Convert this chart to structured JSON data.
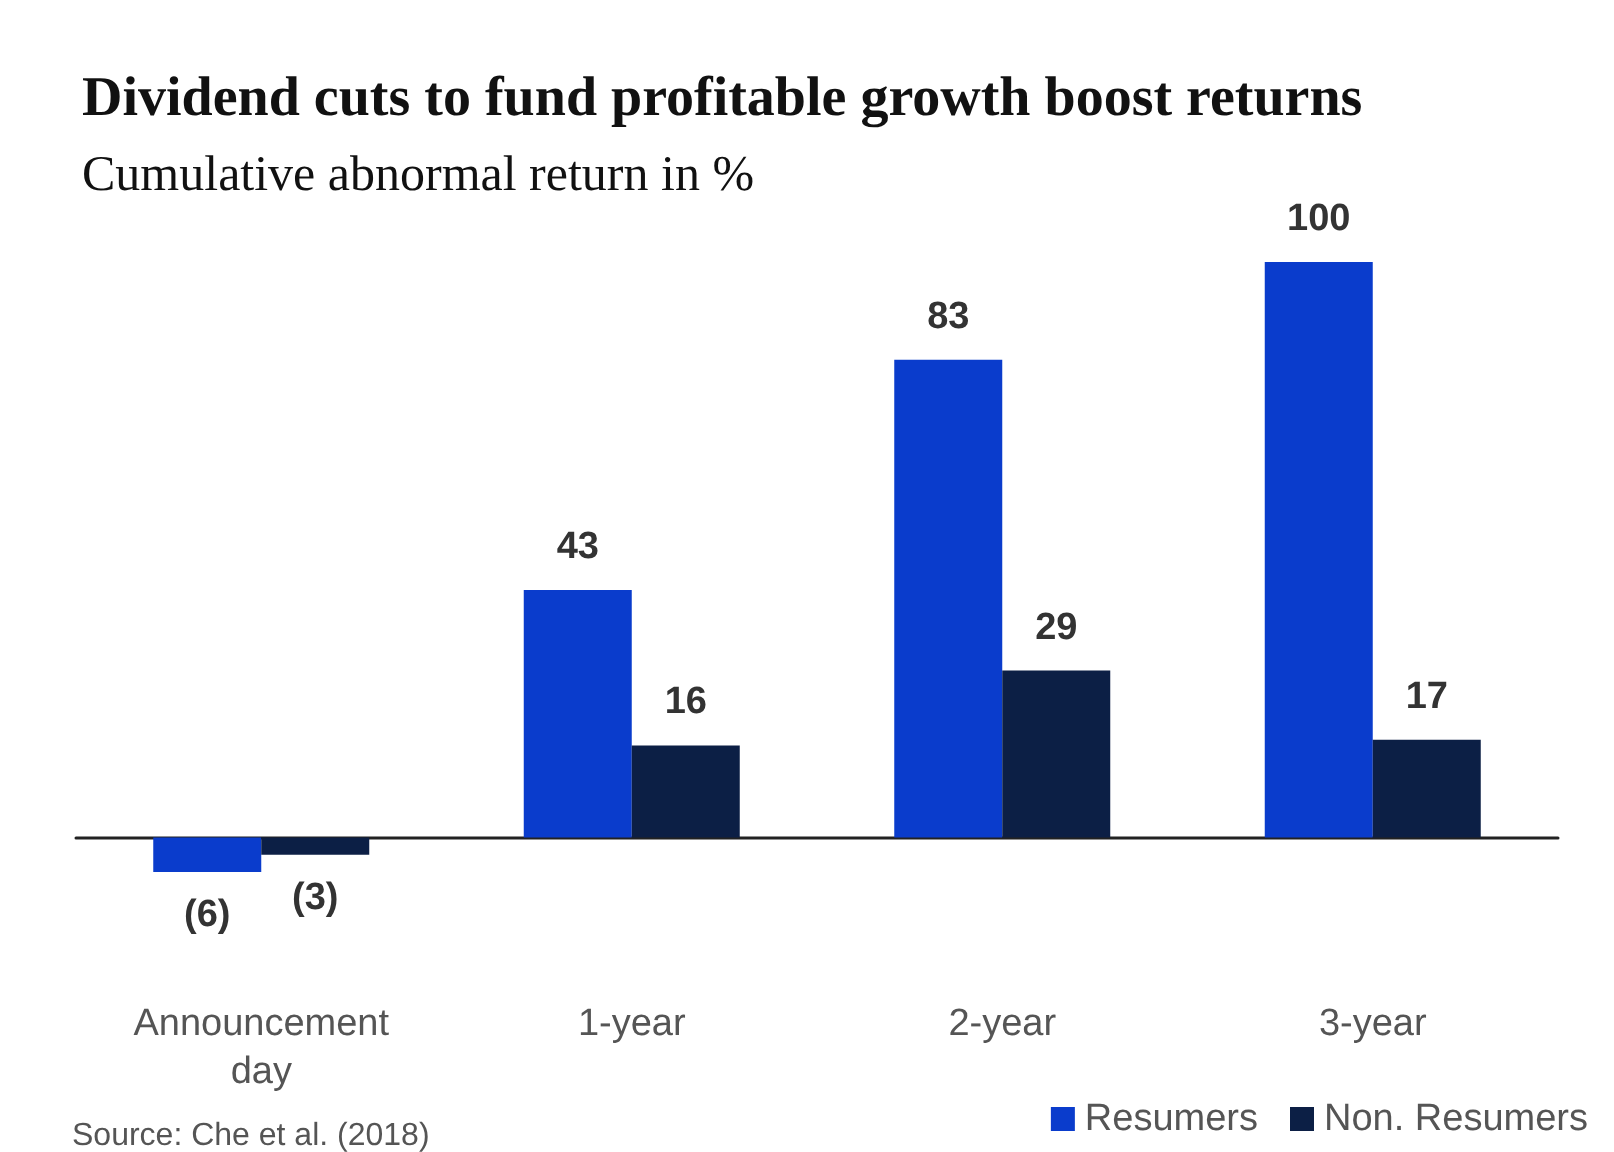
{
  "chart_data": {
    "type": "bar",
    "title": "Dividend cuts to fund profitable growth boost returns",
    "subtitle": "Cumulative abnormal return in %",
    "categories": [
      "Announcement day",
      "1-year",
      "2-year",
      "3-year"
    ],
    "series": [
      {
        "name": "Resumers",
        "color": "#0a3ccc",
        "values": [
          -6,
          43,
          83,
          100
        ],
        "value_labels": [
          "(6)",
          "43",
          "83",
          "100"
        ]
      },
      {
        "name": "Non. Resumers",
        "color": "#0c1f45",
        "values": [
          -3,
          16,
          29,
          17
        ],
        "value_labels": [
          "(3)",
          "16",
          "29",
          "17"
        ]
      }
    ],
    "legend": "bottom right",
    "grid": false,
    "tick_labels": "x",
    "annotations": [
      "Source: Che et al. (2018)"
    ]
  }
}
